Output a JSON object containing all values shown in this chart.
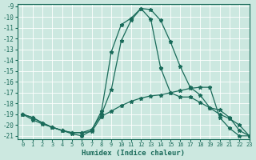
{
  "xlabel": "Humidex (Indice chaleur)",
  "background_color": "#cce8e0",
  "grid_color": "#ffffff",
  "line_color": "#1a6b5a",
  "xlim": [
    -0.5,
    23
  ],
  "ylim": [
    -21.3,
    -8.8
  ],
  "xticks": [
    0,
    1,
    2,
    3,
    4,
    5,
    6,
    7,
    8,
    9,
    10,
    11,
    12,
    13,
    14,
    15,
    16,
    17,
    18,
    19,
    20,
    21,
    22,
    23
  ],
  "yticks": [
    -9,
    -10,
    -11,
    -12,
    -13,
    -14,
    -15,
    -16,
    -17,
    -18,
    -19,
    -20,
    -21
  ],
  "curve1_x": [
    0,
    1,
    2,
    3,
    4,
    5,
    6,
    7,
    8,
    9,
    10,
    11,
    12,
    13,
    14,
    15,
    16,
    17,
    18,
    19,
    20,
    21,
    22,
    23
  ],
  "curve1_y": [
    -19,
    -19.3,
    -19.8,
    -20.2,
    -20.5,
    -20.7,
    -20.7,
    -20.6,
    -19.2,
    -18.7,
    -18.2,
    -17.8,
    -17.5,
    -17.3,
    -17.2,
    -17.0,
    -16.8,
    -16.6,
    -16.5,
    -16.5,
    -19.3,
    -20.3,
    -21.0,
    -21.0
  ],
  "curve2_x": [
    0,
    1,
    2,
    3,
    4,
    5,
    6,
    7,
    8,
    9,
    10,
    11,
    12,
    13,
    14,
    15,
    16,
    17,
    18,
    19,
    20,
    21,
    22,
    23
  ],
  "curve2_y": [
    -19,
    -19.5,
    -19.9,
    -20.2,
    -20.5,
    -20.8,
    -21.0,
    -20.5,
    -18.7,
    -13.2,
    -10.7,
    -10.1,
    -9.2,
    -9.3,
    -10.3,
    -12.3,
    -14.6,
    -16.5,
    -17.2,
    -18.4,
    -18.6,
    -19.3,
    -20.5,
    -21.0
  ],
  "curve3_x": [
    0,
    1,
    2,
    3,
    4,
    5,
    6,
    7,
    8,
    9,
    10,
    11,
    12,
    13,
    14,
    15,
    16,
    17,
    18,
    19,
    20,
    21,
    22,
    23
  ],
  "curve3_y": [
    -19,
    -19.3,
    -19.8,
    -20.2,
    -20.5,
    -20.7,
    -20.7,
    -20.4,
    -19.0,
    -16.7,
    -12.2,
    -10.3,
    -9.2,
    -10.2,
    -14.7,
    -17.0,
    -17.4,
    -17.4,
    -17.9,
    -18.4,
    -19.0,
    -19.4,
    -20.0,
    -21.0
  ]
}
